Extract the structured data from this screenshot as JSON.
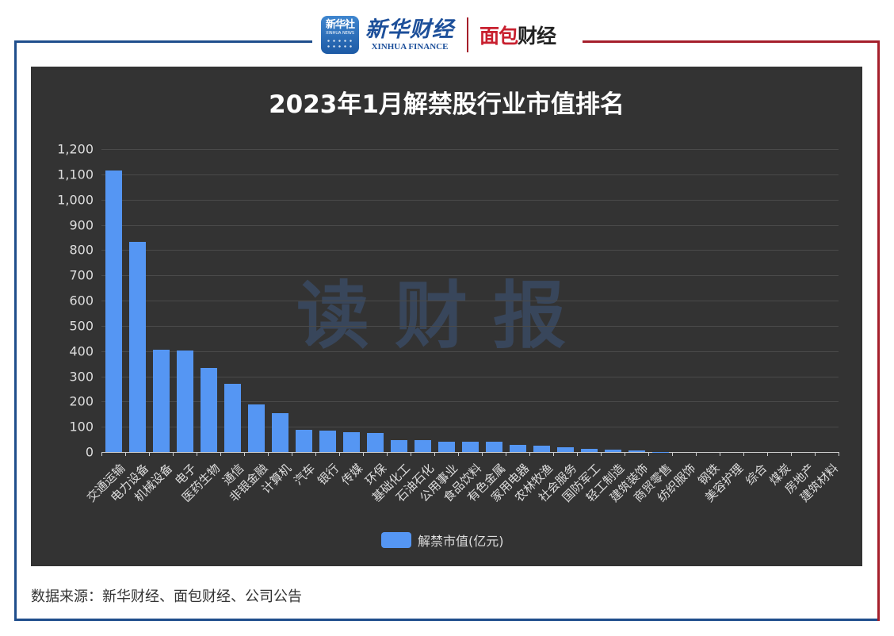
{
  "header": {
    "logo_xinhua_badge_cn": "新华社",
    "logo_xinhua_badge_en": "XINHUA NEWS",
    "logo_finance_cn": "新华财经",
    "logo_finance_en": "XINHUA FINANCE",
    "logo_mianbao_red": "面包",
    "logo_mianbao_dark": "财经"
  },
  "colors": {
    "bar": "#5596f3",
    "chart_bg": "#333333",
    "frame_blue": "#1f4e8c",
    "frame_red": "#a51f2b"
  },
  "watermark": "读财报",
  "legend": {
    "label": "解禁市值(亿元)"
  },
  "footer": {
    "source": "数据来源：新华财经、面包财经、公司公告"
  },
  "chart_data": {
    "type": "bar",
    "title": "2023年1月解禁股行业市值排名",
    "xlabel": "",
    "ylabel": "",
    "ylim": [
      0,
      1200
    ],
    "yticks": [
      "0",
      "100",
      "200",
      "300",
      "400",
      "500",
      "600",
      "700",
      "800",
      "900",
      "1,000",
      "1,100",
      "1,200"
    ],
    "grid": true,
    "legend_position": "bottom",
    "categories": [
      "交通运输",
      "电力设备",
      "机械设备",
      "电子",
      "医药生物",
      "通信",
      "非银金融",
      "计算机",
      "汽车",
      "银行",
      "传媒",
      "环保",
      "基础化工",
      "石油石化",
      "公用事业",
      "食品饮料",
      "有色金属",
      "家用电器",
      "农林牧渔",
      "社会服务",
      "国防军工",
      "轻工制造",
      "建筑装饰",
      "商贸零售",
      "纺织服饰",
      "钢铁",
      "美容护理",
      "综合",
      "煤炭",
      "房地产",
      "建筑材料"
    ],
    "series": [
      {
        "name": "解禁市值(亿元)",
        "values": [
          1116,
          832,
          405,
          403,
          334,
          269,
          188,
          155,
          89,
          84,
          79,
          74,
          47,
          46,
          41,
          40,
          40,
          28,
          24,
          20,
          13,
          9,
          6,
          1,
          0,
          0,
          0,
          0,
          0,
          0,
          0
        ]
      }
    ]
  }
}
